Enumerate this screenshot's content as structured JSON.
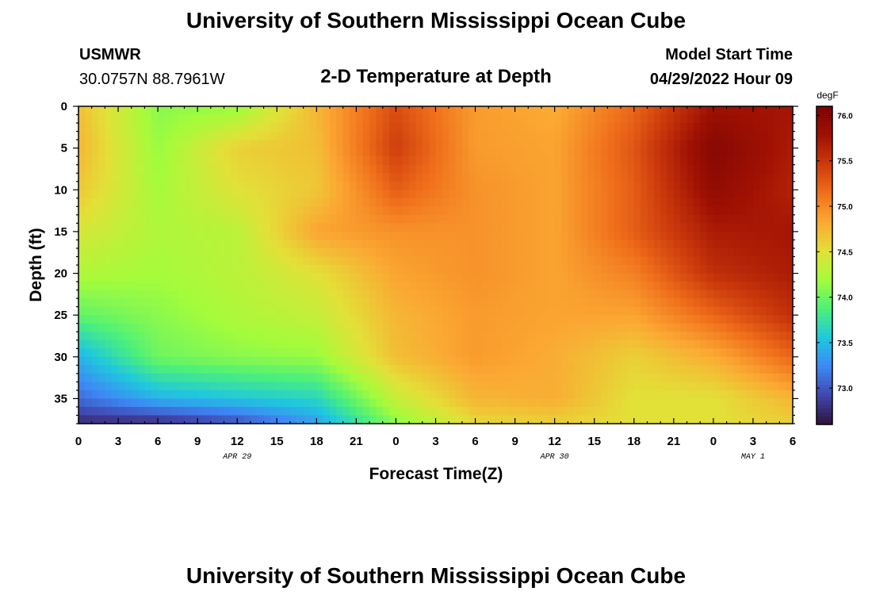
{
  "header": {
    "title": "University of Southern Mississippi Ocean Cube",
    "station": "USMWR",
    "coords": "30.0757N  88.7961W",
    "subtitle": "2-D Temperature at Depth",
    "model_start_label": "Model Start Time",
    "model_start_value": "04/29/2022 Hour 09"
  },
  "footer": {
    "title": "University of Southern Mississippi Ocean Cube"
  },
  "chart_data": {
    "type": "heatmap",
    "title": "2-D Temperature at Depth",
    "xlabel": "Forecast Time(Z)",
    "ylabel": "Depth (ft)",
    "x_ticks": [
      "0",
      "3",
      "6",
      "9",
      "12",
      "15",
      "18",
      "21",
      "0",
      "3",
      "6",
      "9",
      "12",
      "15",
      "18",
      "21",
      "0",
      "3",
      "6"
    ],
    "x_range_hours": [
      0,
      54
    ],
    "date_labels": [
      {
        "label": "APR 29",
        "hour": 12
      },
      {
        "label": "APR 30",
        "hour": 36
      },
      {
        "label": "MAY 1",
        "hour": 51
      }
    ],
    "y_ticks": [
      0,
      5,
      10,
      15,
      20,
      25,
      30,
      35
    ],
    "y_range": [
      0,
      38
    ],
    "y_inverted": true,
    "colorbar": {
      "unit": "degF",
      "min": 72.6,
      "max": 76.1,
      "ticks": [
        "76.0",
        "75.5",
        "75.0",
        "74.5",
        "74.0",
        "73.5",
        "73.0"
      ],
      "colors": [
        "#30123b",
        "#4146ad",
        "#3f87f6",
        "#1fc8de",
        "#4cf07a",
        "#a4fc3b",
        "#e3e038",
        "#fba833",
        "#f06f1b",
        "#cc3a0c",
        "#a01103",
        "#7a0403"
      ]
    },
    "grid_hours": [
      0,
      6,
      12,
      18,
      24,
      30,
      36,
      42,
      48,
      54
    ],
    "grid_depths": [
      0,
      5,
      10,
      15,
      20,
      25,
      30,
      35,
      38
    ],
    "values": [
      [
        74.7,
        74.1,
        74.15,
        74.75,
        75.35,
        74.9,
        74.8,
        75.2,
        75.8,
        75.75
      ],
      [
        74.75,
        74.15,
        74.6,
        74.7,
        75.45,
        74.9,
        74.85,
        75.3,
        76.0,
        75.7
      ],
      [
        74.65,
        74.2,
        74.5,
        74.65,
        75.25,
        74.95,
        74.85,
        75.25,
        75.9,
        75.65
      ],
      [
        74.45,
        74.25,
        74.3,
        74.85,
        74.95,
        74.95,
        74.85,
        75.25,
        75.7,
        75.75
      ],
      [
        74.25,
        74.2,
        74.3,
        74.5,
        74.85,
        74.95,
        74.85,
        75.05,
        75.55,
        75.7
      ],
      [
        73.95,
        74.1,
        74.25,
        74.35,
        74.75,
        74.9,
        74.85,
        74.85,
        75.2,
        75.55
      ],
      [
        73.45,
        74.0,
        74.1,
        74.15,
        74.7,
        74.9,
        74.8,
        74.6,
        74.8,
        75.2
      ],
      [
        73.1,
        73.45,
        73.55,
        73.65,
        74.35,
        74.75,
        74.8,
        74.5,
        74.5,
        74.75
      ],
      [
        72.75,
        72.75,
        72.95,
        73.35,
        74.1,
        74.55,
        74.6,
        74.5,
        74.5,
        74.6
      ]
    ]
  }
}
